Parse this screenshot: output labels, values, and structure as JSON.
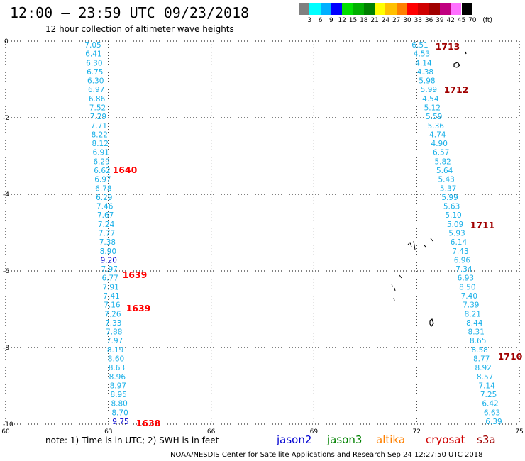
{
  "header": {
    "title": "12:00 – 23:59 UTC 09/23/2018",
    "subtitle": "12 hour collection of altimeter wave heights"
  },
  "color_scale": {
    "labels": [
      "3",
      "6",
      "9",
      "12",
      "15",
      "18",
      "21",
      "24",
      "27",
      "30",
      "33",
      "36",
      "39",
      "42",
      "45",
      "70",
      "(ft)"
    ],
    "colors": [
      "#808080",
      "#00ffff",
      "#00b0ff",
      "#0000ff",
      "#00e000",
      "#00b000",
      "#008000",
      "#ffff00",
      "#ffc000",
      "#ff8000",
      "#ff0000",
      "#d00000",
      "#a00000",
      "#c00080",
      "#ff70ff",
      "#000000"
    ]
  },
  "axes": {
    "x_ticks": [
      "60",
      "63",
      "66",
      "69",
      "72",
      "75"
    ],
    "y_ticks": [
      "0",
      "-2",
      "-4",
      "-6",
      "-8",
      "-10"
    ]
  },
  "tracks": [
    {
      "name": "track-west",
      "color": "#1ab0e8",
      "values": [
        "7.05",
        "6.41",
        "6.30",
        "6.75",
        "6.30",
        "6.97",
        "6.86",
        "7.52",
        "7.29",
        "7.71",
        "8.22",
        "8.12",
        "6.91",
        "6.29",
        "6.62",
        "6.97",
        "6.78",
        "6.29",
        "7.46",
        "7.67",
        "7.24",
        "7.77",
        "7.38",
        "8.90",
        "9.20",
        "7.97",
        "6.77",
        "7.91",
        "7.41",
        "7.16",
        "7.26",
        "7.33",
        "7.88",
        "7.97",
        "8.19",
        "8.60",
        "8.63",
        "8.96",
        "8.97",
        "8.95",
        "8.80",
        "8.70",
        "9.75"
      ]
    },
    {
      "name": "track-east",
      "color": "#1ab0e8",
      "values": [
        "6.51",
        "4.53",
        "4.14",
        "4.38",
        "5.98",
        "5.99",
        "4.54",
        "5.12",
        "5.59",
        "5.36",
        "4.74",
        "4.90",
        "6.57",
        "5.82",
        "5.64",
        "5.43",
        "5.37",
        "5.99",
        "5.63",
        "5.10",
        "5.09",
        "5.93",
        "6.14",
        "7.43",
        "6.96",
        "7.34",
        "6.93",
        "8.50",
        "7.40",
        "7.39",
        "8.21",
        "8.44",
        "8.31",
        "8.65",
        "8.58",
        "8.77",
        "8.92",
        "8.57",
        "7.14",
        "7.25",
        "6.42",
        "6.63",
        "6.39"
      ]
    }
  ],
  "time_labels": [
    {
      "text": "1640",
      "color": "#ff0000"
    },
    {
      "text": "1639",
      "color": "#ff0000"
    },
    {
      "text": "1639",
      "color": "#ff0000"
    },
    {
      "text": "1638",
      "color": "#ff0000"
    },
    {
      "text": "1713",
      "color": "#a00000"
    },
    {
      "text": "1712",
      "color": "#a00000"
    },
    {
      "text": "1711",
      "color": "#a00000"
    },
    {
      "text": "1710",
      "color": "#a00000"
    }
  ],
  "footer": {
    "note": "note: 1) Time is in UTC; 2) SWH is in feet",
    "satellites": [
      {
        "name": "jason2",
        "color": "#0000d0"
      },
      {
        "name": "jason3",
        "color": "#008000"
      },
      {
        "name": "altika",
        "color": "#ff8000"
      },
      {
        "name": "cryosat",
        "color": "#d00000"
      },
      {
        "name": "s3a",
        "color": "#a00000"
      }
    ],
    "credit": "NOAA/NESDIS Center for Satellite Applications and Research   Sep 24 12:27:50 UTC 2018"
  }
}
